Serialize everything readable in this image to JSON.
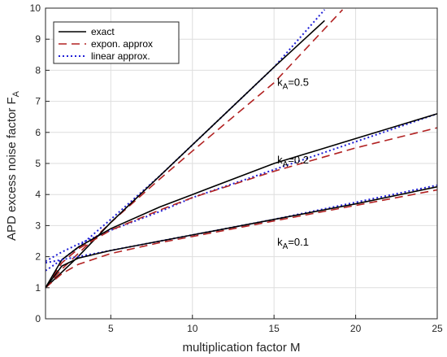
{
  "chart_data": {
    "type": "line",
    "xlabel": "multiplication factor M",
    "ylabel_main": "APD excess noise factor F",
    "ylabel_sub": "A",
    "xlim": [
      1,
      25
    ],
    "ylim": [
      0,
      10
    ],
    "xticks": [
      5,
      10,
      15,
      20,
      25
    ],
    "yticks": [
      0,
      1,
      2,
      3,
      4,
      5,
      6,
      7,
      8,
      9,
      10
    ],
    "grid": true,
    "legend_position": "top-left",
    "legend": [
      {
        "label": "exact",
        "style": "solid",
        "color": "#000000"
      },
      {
        "label": "expon. approx",
        "style": "dashed",
        "color": "#b22222"
      },
      {
        "label": "linear approx.",
        "style": "dotted",
        "color": "#1f1fd6"
      }
    ],
    "annotations": [
      {
        "main": "k",
        "sub": "A",
        "tail": "=0.5",
        "x": 15.2,
        "y": 7.5
      },
      {
        "main": "k",
        "sub": "A",
        "tail": "=0.2",
        "x": 15.2,
        "y": 5.0
      },
      {
        "main": "k",
        "sub": "A",
        "tail": "=0.1",
        "x": 15.2,
        "y": 2.35
      }
    ],
    "curves": [
      {
        "k": 0.5,
        "exact": {
          "x": [
            1,
            2,
            3,
            5,
            8,
            10,
            15,
            18.1
          ],
          "y": [
            1,
            1.5,
            2.0,
            3.1,
            4.6,
            5.6,
            8.1,
            9.6
          ]
        },
        "expon": {
          "x": [
            1,
            2,
            3,
            5,
            8,
            10,
            15,
            19.2
          ],
          "y": [
            1,
            1.6,
            2.1,
            3.1,
            4.5,
            5.4,
            7.6,
            9.95
          ]
        },
        "linear": {
          "x": [
            1,
            2,
            3,
            5,
            8,
            10,
            15,
            18.1
          ],
          "y": [
            1.55,
            1.9,
            2.3,
            3.2,
            4.6,
            5.6,
            8.1,
            9.95
          ]
        }
      },
      {
        "k": 0.2,
        "exact": {
          "x": [
            1,
            2,
            3,
            5,
            8,
            10,
            15,
            20,
            25
          ],
          "y": [
            1,
            1.9,
            2.3,
            2.9,
            3.6,
            4.0,
            5.0,
            5.8,
            6.6
          ]
        },
        "expon": {
          "x": [
            1,
            2,
            3,
            5,
            8,
            10,
            15,
            20,
            25
          ],
          "y": [
            1,
            1.8,
            2.25,
            2.85,
            3.5,
            3.9,
            4.75,
            5.5,
            6.15
          ]
        },
        "linear": {
          "x": [
            1,
            2,
            3,
            5,
            8,
            10,
            15,
            20,
            25
          ],
          "y": [
            1.85,
            2.15,
            2.4,
            2.85,
            3.45,
            3.9,
            4.8,
            5.7,
            6.6
          ]
        }
      },
      {
        "k": 0.1,
        "exact": {
          "x": [
            1,
            2,
            3,
            5,
            8,
            10,
            15,
            20,
            25
          ],
          "y": [
            1,
            1.7,
            1.95,
            2.2,
            2.5,
            2.7,
            3.2,
            3.7,
            4.25
          ]
        },
        "expon": {
          "x": [
            1,
            2,
            3,
            5,
            8,
            10,
            15,
            20,
            25
          ],
          "y": [
            1,
            1.45,
            1.75,
            2.1,
            2.45,
            2.65,
            3.15,
            3.65,
            4.15
          ]
        },
        "linear": {
          "x": [
            1,
            2,
            3,
            5,
            8,
            10,
            15,
            20,
            25
          ],
          "y": [
            1.8,
            1.9,
            2.0,
            2.2,
            2.5,
            2.7,
            3.2,
            3.75,
            4.3
          ]
        }
      }
    ]
  }
}
